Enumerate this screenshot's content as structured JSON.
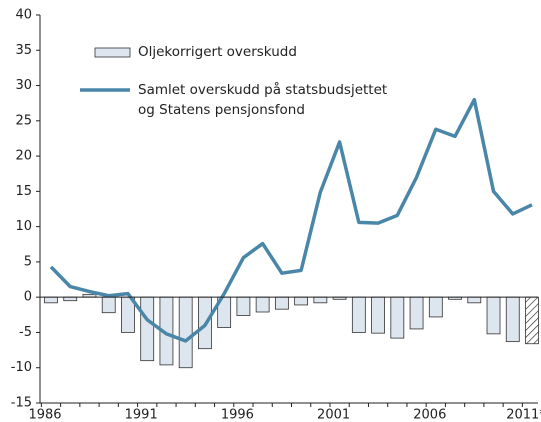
{
  "chart_data": {
    "type": "bar+line",
    "categories": [
      "1986",
      null,
      null,
      null,
      null,
      "1991",
      null,
      null,
      null,
      null,
      "1996",
      null,
      null,
      null,
      null,
      "2001",
      null,
      null,
      null,
      null,
      "2006",
      null,
      null,
      null,
      null,
      "2011*"
    ],
    "series": [
      {
        "name": "Oljekorrigert overskudd",
        "type": "bar",
        "color": "#dde6ee",
        "values": [
          -0.8,
          -0.5,
          0.4,
          -2.2,
          -5,
          -9,
          -9.6,
          -10,
          -7.3,
          -4.3,
          -2.6,
          -2.1,
          -1.7,
          -1.1,
          -0.8,
          -0.3,
          -5,
          -5.1,
          -5.8,
          -4.5,
          -2.8,
          -0.3,
          -0.8,
          -5.2,
          -6.3,
          -6.6
        ]
      },
      {
        "name": "Samlet overskudd på statsbudsjettet og Statens pensjonsfond",
        "type": "line",
        "color": "#4a86a8",
        "values": [
          4.3,
          1.5,
          0.8,
          0.2,
          0.5,
          -3.2,
          -5.2,
          -6.2,
          -4,
          0.5,
          5.6,
          7.6,
          3.4,
          3.8,
          14.9,
          22,
          10.6,
          10.5,
          11.6,
          17,
          23.8,
          22.8,
          28,
          15,
          11.8,
          13.1
        ]
      }
    ],
    "ylim": [
      -15,
      40
    ],
    "yticks": [
      -15,
      -10,
      -5,
      0,
      5,
      10,
      15,
      20,
      25,
      30,
      35,
      40
    ],
    "grid": false
  }
}
